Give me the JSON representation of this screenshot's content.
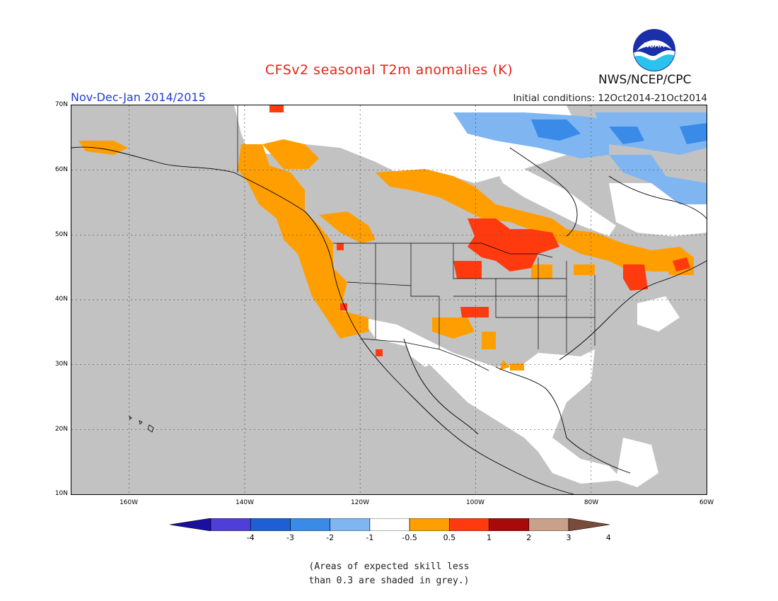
{
  "title": "CFSv2 seasonal T2m anomalies (K)",
  "agency": "NWS/NCEP/CPC",
  "logo_text": "NOAA",
  "period": "Nov-Dec-Jan 2014/2015",
  "initial_conditions": "Initial conditions: 12Oct2014-21Oct2014",
  "lat_labels": [
    "70N",
    "60N",
    "50N",
    "40N",
    "30N",
    "20N",
    "10N"
  ],
  "lon_labels": [
    "160W",
    "140W",
    "120W",
    "100W",
    "80W",
    "60W"
  ],
  "colorbar": {
    "labels": [
      "-4",
      "-3",
      "-2",
      "-1",
      "-0.5",
      "0.5",
      "1",
      "2",
      "3",
      "4"
    ],
    "colors": [
      "#1b0fa0",
      "#4f3ed8",
      "#1f5fd6",
      "#3a8ae8",
      "#7fb6f2",
      "#ffffff",
      "#ff9e00",
      "#ff3a0f",
      "#a80a0a",
      "#c9a08a",
      "#7a4a3a"
    ]
  },
  "colors": {
    "no_skill_grey": "#c2c2c2",
    "ocean_grey": "#c2c2c2",
    "orange": "#ff9e00",
    "red": "#ff3a0f",
    "light_blue": "#7fb6f2",
    "mid_blue": "#3a8ae8"
  },
  "note_line1": "(Areas of expected skill less",
  "note_line2": "than 0.3 are shaded in grey.)"
}
